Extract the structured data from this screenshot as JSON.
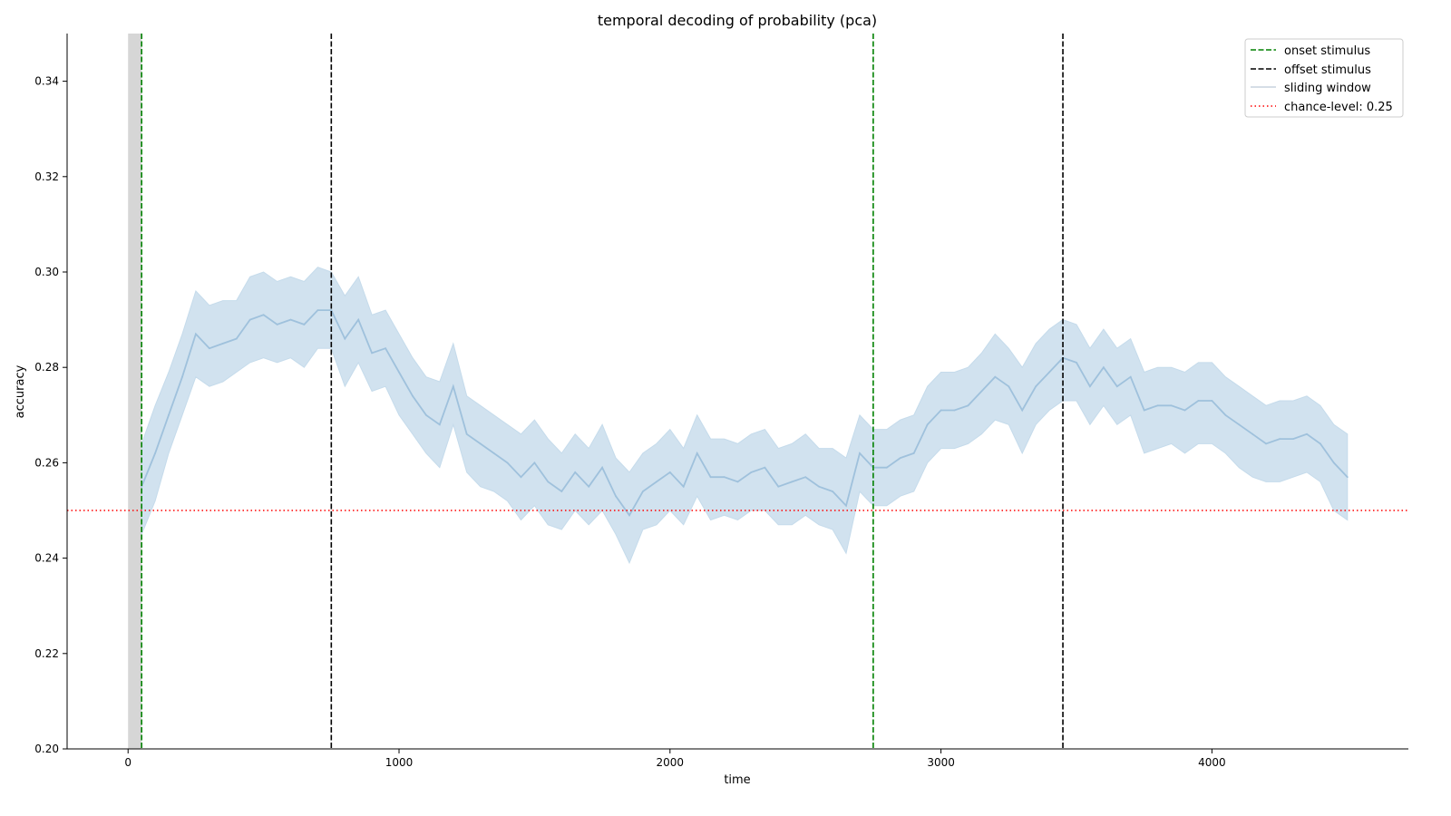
{
  "chart_data": {
    "type": "line",
    "title": "temporal decoding of probability (pca)",
    "xlabel": "time",
    "ylabel": "accuracy",
    "xlim": [
      -225,
      4725
    ],
    "ylim": [
      0.2,
      0.35
    ],
    "xticks": [
      0,
      1000,
      2000,
      3000,
      4000
    ],
    "xtick_labels": [
      "0",
      "1000",
      "2000",
      "3000",
      "4000"
    ],
    "yticks": [
      0.2,
      0.22,
      0.24,
      0.26,
      0.28,
      0.3,
      0.32,
      0.34
    ],
    "ytick_labels": [
      "0.20",
      "0.22",
      "0.24",
      "0.26",
      "0.28",
      "0.30",
      "0.32",
      "0.34"
    ],
    "grid": false,
    "legend_position": "top-right",
    "legend": [
      {
        "label": "onset stimulus",
        "style": "dashed",
        "color": "#008000"
      },
      {
        "label": "offset stimulus",
        "style": "dashed",
        "color": "#000000"
      },
      {
        "label": "sliding window",
        "style": "solid",
        "color": "#c8d3de"
      },
      {
        "label": "chance-level: 0.25",
        "style": "dotted",
        "color": "#ff0000"
      }
    ],
    "baseline_window": [
      0,
      50
    ],
    "onset_lines": [
      50,
      2750
    ],
    "offset_lines": [
      750,
      3450
    ],
    "chance_level": 0.25,
    "series": [
      {
        "name": "sliding window",
        "x": [
          50,
          100,
          150,
          200,
          250,
          300,
          350,
          400,
          450,
          500,
          550,
          600,
          650,
          700,
          750,
          800,
          850,
          900,
          950,
          1000,
          1050,
          1100,
          1150,
          1200,
          1250,
          1300,
          1350,
          1400,
          1450,
          1500,
          1550,
          1600,
          1650,
          1700,
          1750,
          1800,
          1850,
          1900,
          1950,
          2000,
          2050,
          2100,
          2150,
          2200,
          2250,
          2300,
          2350,
          2400,
          2450,
          2500,
          2550,
          2600,
          2650,
          2700,
          2750,
          2800,
          2850,
          2900,
          2950,
          3000,
          3050,
          3100,
          3150,
          3200,
          3250,
          3300,
          3350,
          3400,
          3450,
          3500,
          3550,
          3600,
          3650,
          3700,
          3750,
          3800,
          3850,
          3900,
          3950,
          4000,
          4050,
          4100,
          4150,
          4200,
          4250,
          4300,
          4350,
          4400,
          4450,
          4500
        ],
        "y": [
          0.255,
          0.262,
          0.27,
          0.278,
          0.287,
          0.284,
          0.285,
          0.286,
          0.29,
          0.291,
          0.289,
          0.29,
          0.289,
          0.292,
          0.292,
          0.286,
          0.29,
          0.283,
          0.284,
          0.279,
          0.274,
          0.27,
          0.268,
          0.276,
          0.266,
          0.264,
          0.262,
          0.26,
          0.257,
          0.26,
          0.256,
          0.254,
          0.258,
          0.255,
          0.259,
          0.253,
          0.249,
          0.254,
          0.256,
          0.258,
          0.255,
          0.262,
          0.257,
          0.257,
          0.256,
          0.258,
          0.259,
          0.255,
          0.256,
          0.257,
          0.255,
          0.254,
          0.251,
          0.262,
          0.259,
          0.259,
          0.261,
          0.262,
          0.268,
          0.271,
          0.271,
          0.272,
          0.275,
          0.278,
          0.276,
          0.271,
          0.276,
          0.279,
          0.282,
          0.281,
          0.276,
          0.28,
          0.276,
          0.278,
          0.271,
          0.272,
          0.272,
          0.271,
          0.273,
          0.273,
          0.27,
          0.268,
          0.266,
          0.264,
          0.265,
          0.265,
          0.266,
          0.264,
          0.26,
          0.257
        ],
        "lower": [
          0.245,
          0.252,
          0.262,
          0.27,
          0.278,
          0.276,
          0.277,
          0.279,
          0.281,
          0.282,
          0.281,
          0.282,
          0.28,
          0.284,
          0.284,
          0.276,
          0.281,
          0.275,
          0.276,
          0.27,
          0.266,
          0.262,
          0.259,
          0.268,
          0.258,
          0.255,
          0.254,
          0.252,
          0.248,
          0.251,
          0.247,
          0.246,
          0.25,
          0.247,
          0.25,
          0.245,
          0.239,
          0.246,
          0.247,
          0.25,
          0.247,
          0.253,
          0.248,
          0.249,
          0.248,
          0.25,
          0.25,
          0.247,
          0.247,
          0.249,
          0.247,
          0.246,
          0.241,
          0.254,
          0.251,
          0.251,
          0.253,
          0.254,
          0.26,
          0.263,
          0.263,
          0.264,
          0.266,
          0.269,
          0.268,
          0.262,
          0.268,
          0.271,
          0.273,
          0.273,
          0.268,
          0.272,
          0.268,
          0.27,
          0.262,
          0.263,
          0.264,
          0.262,
          0.264,
          0.264,
          0.262,
          0.259,
          0.257,
          0.256,
          0.256,
          0.257,
          0.258,
          0.256,
          0.25,
          0.248
        ],
        "upper": [
          0.264,
          0.272,
          0.279,
          0.287,
          0.296,
          0.293,
          0.294,
          0.294,
          0.299,
          0.3,
          0.298,
          0.299,
          0.298,
          0.301,
          0.3,
          0.295,
          0.299,
          0.291,
          0.292,
          0.287,
          0.282,
          0.278,
          0.277,
          0.285,
          0.274,
          0.272,
          0.27,
          0.268,
          0.266,
          0.269,
          0.265,
          0.262,
          0.266,
          0.263,
          0.268,
          0.261,
          0.258,
          0.262,
          0.264,
          0.267,
          0.263,
          0.27,
          0.265,
          0.265,
          0.264,
          0.266,
          0.267,
          0.263,
          0.264,
          0.266,
          0.263,
          0.263,
          0.261,
          0.27,
          0.267,
          0.267,
          0.269,
          0.27,
          0.276,
          0.279,
          0.279,
          0.28,
          0.283,
          0.287,
          0.284,
          0.28,
          0.285,
          0.288,
          0.29,
          0.289,
          0.284,
          0.288,
          0.284,
          0.286,
          0.279,
          0.28,
          0.28,
          0.279,
          0.281,
          0.281,
          0.278,
          0.276,
          0.274,
          0.272,
          0.273,
          0.273,
          0.274,
          0.272,
          0.268,
          0.266
        ]
      }
    ],
    "colors": {
      "series_line": "#9fc1dc",
      "band": "#c5dbeb",
      "baseline_window": "#d6d6d6",
      "onset": "#008000",
      "offset": "#000000",
      "chance": "#ff0000",
      "axis": "#000000"
    }
  }
}
